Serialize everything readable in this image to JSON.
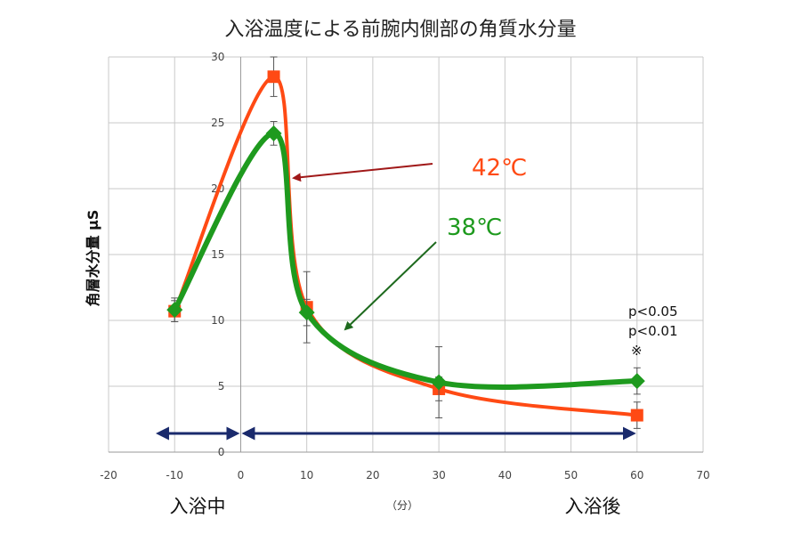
{
  "chart_data": {
    "type": "line",
    "title": "入浴温度による前腕内側部の角質水分量",
    "ylabel": "角層水分量 μS",
    "xunit": "（分）",
    "xlim": [
      -20,
      70
    ],
    "ylim": [
      0,
      30
    ],
    "xticks": [
      "-20",
      "-10",
      "0",
      "10",
      "20",
      "30",
      "40",
      "50",
      "60",
      "70"
    ],
    "yticks": [
      "0",
      "5",
      "10",
      "15",
      "20",
      "25",
      "30"
    ],
    "grid": true,
    "series": [
      {
        "name": "42℃",
        "color": "#ff4a14",
        "marker": "square",
        "x": [
          -10,
          5,
          10,
          30,
          60
        ],
        "y": [
          10.7,
          28.5,
          11.0,
          4.8,
          2.8
        ],
        "err": [
          0.8,
          1.5,
          2.7,
          0.9,
          1.0
        ]
      },
      {
        "name": "38℃",
        "color": "#1e9a1e",
        "marker": "diamond",
        "x": [
          -10,
          5,
          10,
          30,
          60
        ],
        "y": [
          10.8,
          24.2,
          10.6,
          5.3,
          5.4
        ],
        "err": [
          0.9,
          0.9,
          1.0,
          2.7,
          1.0
        ]
      }
    ],
    "annotations": {
      "label_42": "42℃",
      "label_38": "38℃",
      "p1": "p<0.05",
      "p2": "p<0.01",
      "mark": "※"
    },
    "phases": {
      "before": "入浴中",
      "after": "入浴後"
    },
    "arrow_color": "#1a2a6c",
    "arrow_42_color": "#a01818",
    "arrow_38_color": "#1e6a1e"
  }
}
